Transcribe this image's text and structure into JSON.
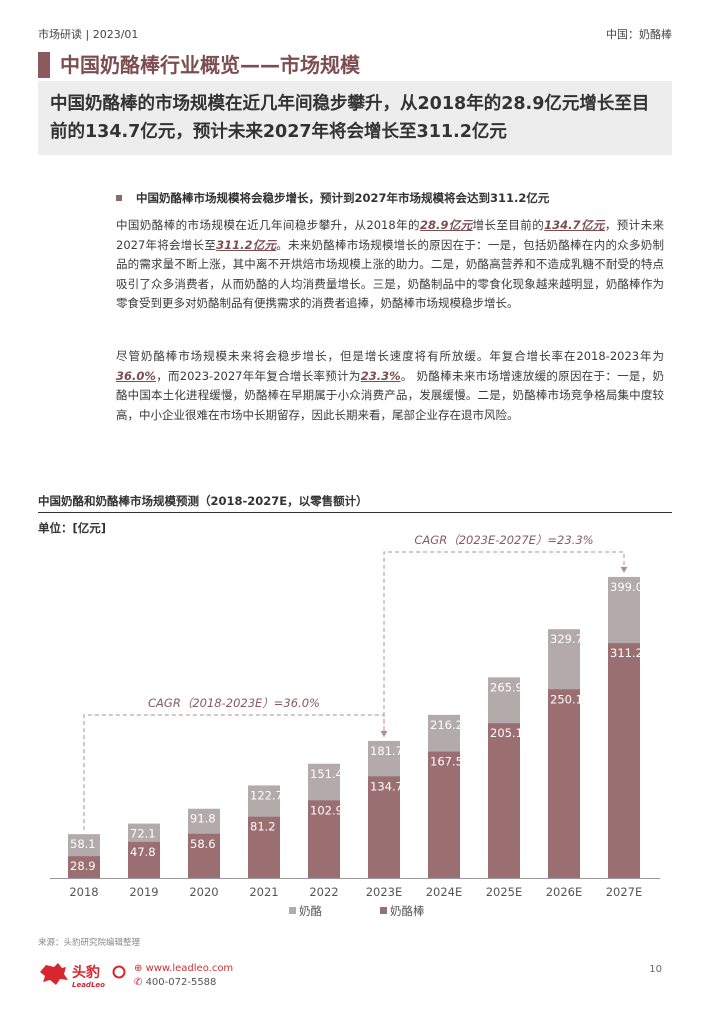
{
  "header": {
    "left": "市场研读 | 2023/01",
    "right": "中国：奶酪棒"
  },
  "title": "中国奶酪棒行业概览——市场规模",
  "summary": "中国奶酪棒的市场规模在近几年间稳步攀升，从2018年的28.9亿元增长至目前的134.7亿元，预计未来2027年将会增长至311.2亿元",
  "bullet": "中国奶酪棒市场规模将会稳步增长，预计到2027年市场规模将会达到311.2亿元",
  "para1": {
    "t1": "中国奶酪棒的市场规模在近几年间稳步攀升，从2018年的",
    "v1": "28.9亿元",
    "t2": "增长至目前的",
    "v2": "134.7亿元",
    "t3": "，预计未来2027年将会增长至",
    "v3": "311.2亿元",
    "t4": "。未来奶酪棒市场规模增长的原因在于：一是，包括奶酪棒在内的众多奶制品的需求量不断上涨，其中离不开烘焙市场规模上涨的助力。二是，奶酪高营养和不造成乳糖不耐受的特点吸引了众多消费者，从而奶酪的人均消费量增长。三是，奶酪制品中的零食化现象越来越明显，奶酪棒作为零食受到更多对奶酪制品有便携需求的消费者追捧，奶酪棒市场规模稳步增长。"
  },
  "para2": {
    "t1": "尽管奶酪棒市场规模未来将会稳步增长，但是增长速度将有所放缓。年复合增长率在2018-2023年为",
    "v1": "36.0%",
    "t2": "，而2023-2027年年复合增长率预计为",
    "v2": "23.3%",
    "t3": "。 奶酪棒未来市场增速放缓的原因在于：一是，奶酪中国本土化进程缓慢，奶酪棒在早期属于小众消费产品，发展缓慢。二是，奶酪棒市场竞争格局集中度较高，中小企业很难在市场中长期留存，因此长期来看，尾部企业存在退市风险。"
  },
  "chart_title": "中国奶酪和奶酪棒市场规模预测（2018-2027E，以零售额计）",
  "unit_label": "单位：[亿元]",
  "chart_data": {
    "type": "bar",
    "stacked": false,
    "overlapping": true,
    "categories": [
      "2018",
      "2019",
      "2020",
      "2021",
      "2022",
      "2023E",
      "2024E",
      "2025E",
      "2026E",
      "2027E"
    ],
    "series": [
      {
        "name": "奶酪",
        "values": [
          58.1,
          72.1,
          91.8,
          122.7,
          151.4,
          181.7,
          216.2,
          265.9,
          329.7,
          399.0
        ],
        "color": "#b3aaab",
        "labels": [
          "58.1",
          "72.1",
          "91.8",
          "122.7",
          "151.4",
          "181.7",
          "216.2",
          "265.9",
          "329.7",
          "399.0"
        ]
      },
      {
        "name": "奶酪棒",
        "values": [
          28.9,
          47.8,
          58.6,
          81.2,
          102.9,
          134.7,
          167.5,
          205.1,
          250.1,
          311.2
        ],
        "color": "#9b6e71",
        "labels": [
          "28.9",
          "47.8",
          "58.6",
          "81.2",
          "102.9",
          "134.7",
          "167.5",
          "205.1",
          "250.1",
          "311.2"
        ]
      }
    ],
    "ylim": [
      0,
      420
    ],
    "grid": false,
    "legend": "bottom-center",
    "annotations": [
      {
        "text": "CAGR（2018-2023E）=36.0%",
        "from": "2018",
        "to": "2023E"
      },
      {
        "text": "CAGR（2023E-2027E）=23.3%",
        "from": "2023E",
        "to": "2027E"
      }
    ]
  },
  "source": "来源：头豹研究院编辑整理",
  "footer": {
    "logo_text": "头豹",
    "logo_sub": "LeadLeo",
    "url": "www.leadleo.com",
    "phone": "400-072-5588",
    "page": "10"
  }
}
